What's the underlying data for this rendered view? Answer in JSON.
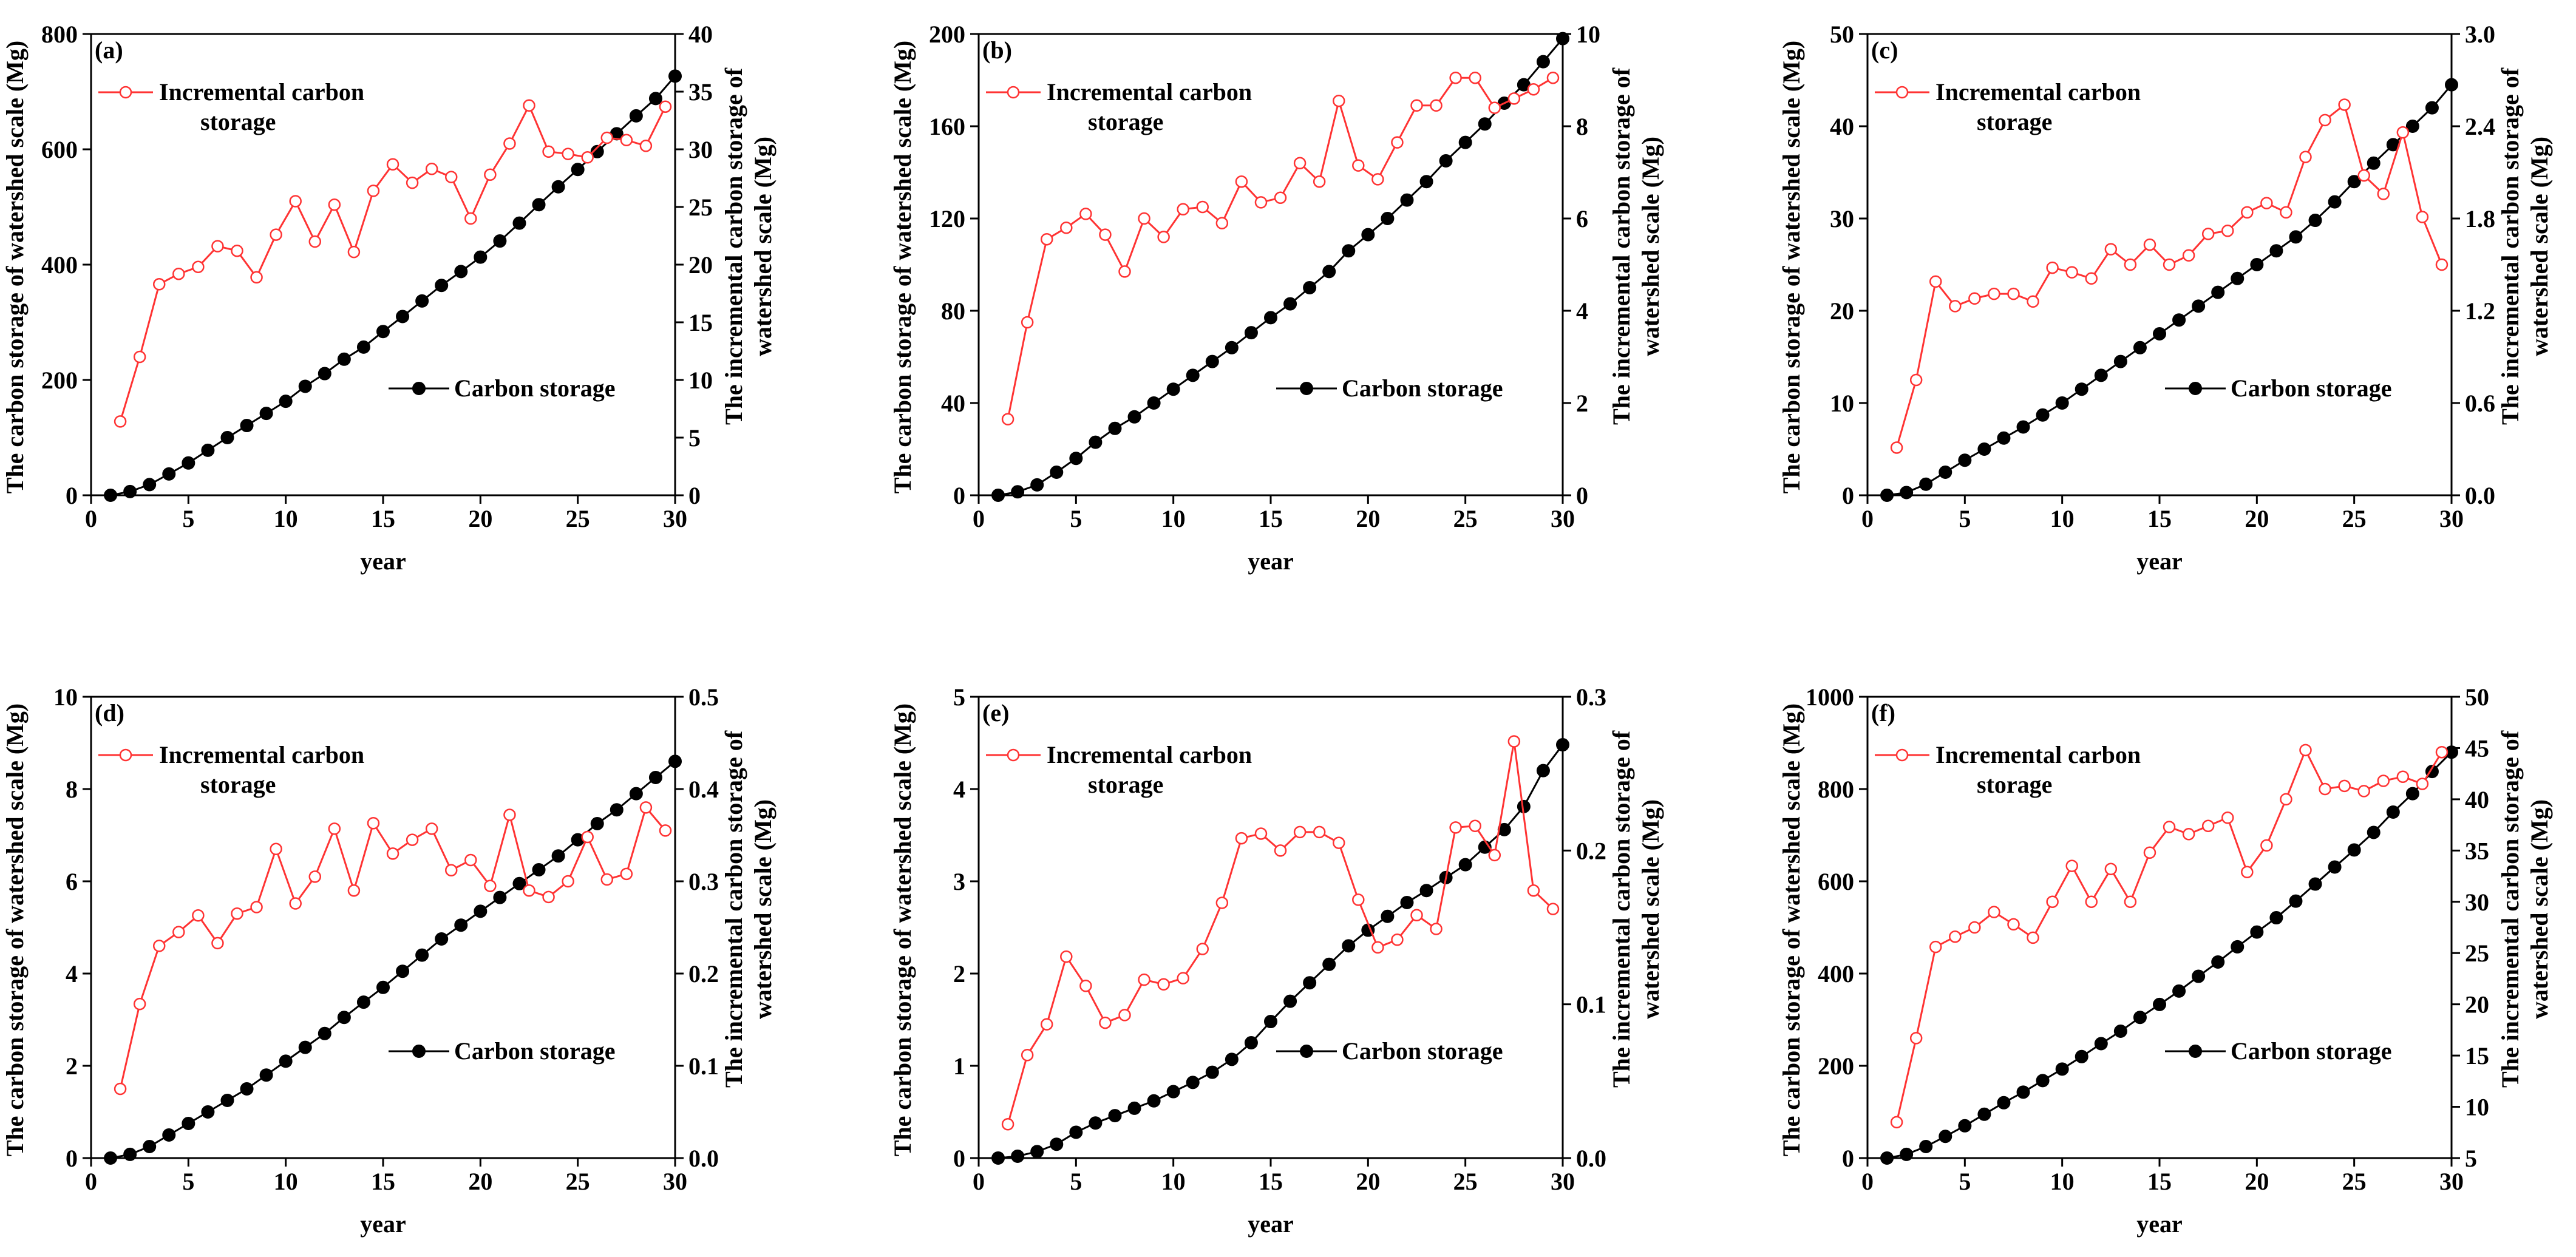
{
  "chart_data": [
    {
      "type": "line",
      "panel_label": "(a)",
      "xlabel": "year",
      "ylabel": "The carbon storage of watershed scale (Mg)",
      "ylabel2": [
        "The incremental carbon storage of",
        "watershed scale (Mg)"
      ],
      "xlim": [
        0,
        30
      ],
      "ylim": [
        0,
        800
      ],
      "ylim2": [
        0,
        40
      ],
      "xticks": [
        0,
        5,
        10,
        15,
        20,
        25,
        30
      ],
      "yticks": [
        0,
        200,
        400,
        600,
        800
      ],
      "yticks2": [
        0,
        5,
        10,
        15,
        20,
        25,
        30,
        35,
        40
      ],
      "legend_incremental": [
        "Incremental carbon",
        "storage"
      ],
      "legend_carbon": "Carbon storage",
      "series": [
        {
          "name": "Carbon storage",
          "axis": "left",
          "color": "#000000",
          "x": [
            1,
            2,
            3,
            4,
            5,
            6,
            7,
            8,
            9,
            10,
            11,
            12,
            13,
            14,
            15,
            16,
            17,
            18,
            19,
            20,
            21,
            22,
            23,
            24,
            25,
            26,
            27,
            28,
            29,
            30
          ],
          "values": [
            0,
            6.5,
            18.5,
            37,
            56,
            78,
            100,
            121,
            142,
            163,
            189,
            211,
            236,
            257,
            284,
            310,
            337,
            364,
            388,
            413,
            441,
            472,
            504,
            535,
            565,
            596,
            627,
            658,
            688,
            727
          ]
        },
        {
          "name": "Incremental carbon storage",
          "axis": "right",
          "color": "#ff3333",
          "x": [
            1.5,
            2.5,
            3.5,
            4.5,
            5.5,
            6.5,
            7.5,
            8.5,
            9.5,
            10.5,
            11.5,
            12.5,
            13.5,
            14.5,
            15.5,
            16.5,
            17.5,
            18.5,
            19.5,
            20.5,
            21.5,
            22.5,
            23.5,
            24.5,
            25.5,
            26.5,
            27.5,
            28.5,
            29.5
          ],
          "values": [
            6.4,
            12,
            18.3,
            19.2,
            19.8,
            21.6,
            21.2,
            18.9,
            22.6,
            25.5,
            22,
            25.2,
            21.1,
            26.4,
            28.7,
            27.1,
            28.3,
            27.6,
            24,
            27.8,
            30.5,
            33.8,
            29.8,
            29.6,
            29.3,
            31,
            30.8,
            30.3,
            33.7
          ]
        }
      ]
    },
    {
      "type": "line",
      "panel_label": "(b)",
      "xlabel": "year",
      "ylabel": "The carbon storage of watershed scale (Mg)",
      "ylabel2": [
        "The incremental carbon storage of",
        "watershed scale (Mg)"
      ],
      "xlim": [
        0,
        30
      ],
      "ylim": [
        0,
        200
      ],
      "ylim2": [
        0,
        10
      ],
      "xticks": [
        0,
        5,
        10,
        15,
        20,
        25,
        30
      ],
      "yticks": [
        0,
        40,
        80,
        120,
        160,
        200
      ],
      "yticks2": [
        0,
        2,
        4,
        6,
        8,
        10
      ],
      "legend_incremental": [
        "Incremental carbon",
        "storage"
      ],
      "legend_carbon": "Carbon storage",
      "series": [
        {
          "name": "Carbon storage",
          "axis": "left",
          "color": "#000000",
          "x": [
            1,
            2,
            3,
            4,
            5,
            6,
            7,
            8,
            9,
            10,
            11,
            12,
            13,
            14,
            15,
            16,
            17,
            18,
            19,
            20,
            21,
            22,
            23,
            24,
            25,
            26,
            27,
            28,
            29,
            30
          ],
          "values": [
            0,
            1.5,
            4.5,
            10,
            16,
            23,
            29,
            34,
            40,
            46,
            52,
            58,
            64,
            70.5,
            77,
            83,
            90,
            97,
            106,
            113,
            120,
            128,
            136,
            145,
            153,
            161,
            170,
            178,
            188,
            198
          ]
        },
        {
          "name": "Incremental carbon storage",
          "axis": "right",
          "color": "#ff3333",
          "x": [
            1.5,
            2.5,
            3.5,
            4.5,
            5.5,
            6.5,
            7.5,
            8.5,
            9.5,
            10.5,
            11.5,
            12.5,
            13.5,
            14.5,
            15.5,
            16.5,
            17.5,
            18.5,
            19.5,
            20.5,
            21.5,
            22.5,
            23.5,
            24.5,
            25.5,
            26.5,
            27.5,
            28.5,
            29.5
          ],
          "values": [
            1.65,
            3.75,
            5.55,
            5.8,
            6.1,
            5.65,
            4.85,
            6.0,
            5.6,
            6.2,
            6.25,
            5.9,
            6.8,
            6.35,
            6.45,
            7.2,
            6.8,
            8.55,
            7.15,
            6.85,
            7.65,
            8.45,
            8.45,
            9.05,
            9.05,
            8.4,
            8.6,
            8.8,
            9.05
          ]
        }
      ]
    },
    {
      "type": "line",
      "panel_label": "(c)",
      "xlabel": "year",
      "ylabel": "The carbon storage of watershed scale (Mg)",
      "ylabel2": [
        "The incremental carbon storage of",
        "watershed scale (Mg)"
      ],
      "xlim": [
        0,
        30
      ],
      "ylim": [
        0,
        50
      ],
      "ylim2": [
        0,
        3.0
      ],
      "xticks": [
        0,
        5,
        10,
        15,
        20,
        25,
        30
      ],
      "yticks": [
        0,
        10,
        20,
        30,
        40,
        50
      ],
      "yticks2": [
        "0.0",
        "0.6",
        "1.2",
        "1.8",
        "2.4",
        "3.0"
      ],
      "legend_incremental": [
        "Incremental carbon",
        "storage"
      ],
      "legend_carbon": "Carbon storage",
      "series": [
        {
          "name": "Carbon storage",
          "axis": "left",
          "color": "#000000",
          "x": [
            1,
            2,
            3,
            4,
            5,
            6,
            7,
            8,
            9,
            10,
            11,
            12,
            13,
            14,
            15,
            16,
            17,
            18,
            19,
            20,
            21,
            22,
            23,
            24,
            25,
            26,
            27,
            28,
            29,
            30
          ],
          "values": [
            0,
            0.3,
            1.2,
            2.5,
            3.8,
            5,
            6.2,
            7.4,
            8.7,
            10,
            11.5,
            13,
            14.5,
            16,
            17.5,
            19,
            20.5,
            22,
            23.5,
            25,
            26.5,
            28,
            29.8,
            31.8,
            34,
            36,
            38,
            40,
            42,
            44.5
          ]
        },
        {
          "name": "Incremental carbon storage",
          "axis": "right",
          "color": "#ff3333",
          "x": [
            1.5,
            2.5,
            3.5,
            4.5,
            5.5,
            6.5,
            7.5,
            8.5,
            9.5,
            10.5,
            11.5,
            12.5,
            13.5,
            14.5,
            15.5,
            16.5,
            17.5,
            18.5,
            19.5,
            20.5,
            21.5,
            22.5,
            23.5,
            24.5,
            25.5,
            26.5,
            27.5,
            28.5,
            29.5
          ],
          "values": [
            0.31,
            0.75,
            1.39,
            1.23,
            1.28,
            1.31,
            1.31,
            1.26,
            1.48,
            1.45,
            1.41,
            1.6,
            1.5,
            1.63,
            1.5,
            1.56,
            1.7,
            1.72,
            1.84,
            1.9,
            1.84,
            2.2,
            2.44,
            2.54,
            2.08,
            1.96,
            2.36,
            1.81,
            1.5
          ]
        }
      ]
    },
    {
      "type": "line",
      "panel_label": "(d)",
      "xlabel": "year",
      "ylabel": "The carbon storage of watershed scale (Mg)",
      "ylabel2": [
        "The incremental carbon storage of",
        "watershed scale (Mg)"
      ],
      "xlim": [
        0,
        30
      ],
      "ylim": [
        0,
        10
      ],
      "ylim2": [
        0,
        0.5
      ],
      "xticks": [
        0,
        5,
        10,
        15,
        20,
        25,
        30
      ],
      "yticks": [
        0,
        2,
        4,
        6,
        8,
        10
      ],
      "yticks2": [
        "0.0",
        "0.1",
        "0.2",
        "0.3",
        "0.4",
        "0.5"
      ],
      "legend_incremental": [
        "Incremental carbon",
        "storage"
      ],
      "legend_carbon": "Carbon storage",
      "series": [
        {
          "name": "Carbon storage",
          "axis": "left",
          "color": "#000000",
          "x": [
            1,
            2,
            3,
            4,
            5,
            6,
            7,
            8,
            9,
            10,
            11,
            12,
            13,
            14,
            15,
            16,
            17,
            18,
            19,
            20,
            21,
            22,
            23,
            24,
            25,
            26,
            27,
            28,
            29,
            30
          ],
          "values": [
            0,
            0.08,
            0.25,
            0.5,
            0.75,
            1.0,
            1.25,
            1.5,
            1.8,
            2.1,
            2.4,
            2.7,
            3.05,
            3.38,
            3.7,
            4.05,
            4.4,
            4.75,
            5.05,
            5.35,
            5.65,
            5.95,
            6.25,
            6.55,
            6.9,
            7.25,
            7.55,
            7.9,
            8.25,
            8.6
          ]
        },
        {
          "name": "Incremental carbon storage",
          "axis": "right",
          "color": "#ff3333",
          "x": [
            1.5,
            2.5,
            3.5,
            4.5,
            5.5,
            6.5,
            7.5,
            8.5,
            9.5,
            10.5,
            11.5,
            12.5,
            13.5,
            14.5,
            15.5,
            16.5,
            17.5,
            18.5,
            19.5,
            20.5,
            21.5,
            22.5,
            23.5,
            24.5,
            25.5,
            26.5,
            27.5,
            28.5,
            29.5
          ],
          "values": [
            0.075,
            0.167,
            0.23,
            0.245,
            0.263,
            0.233,
            0.265,
            0.272,
            0.335,
            0.276,
            0.305,
            0.357,
            0.29,
            0.363,
            0.33,
            0.345,
            0.357,
            0.312,
            0.323,
            0.295,
            0.372,
            0.29,
            0.283,
            0.3,
            0.348,
            0.302,
            0.308,
            0.38,
            0.355
          ]
        }
      ]
    },
    {
      "type": "line",
      "panel_label": "(e)",
      "xlabel": "year",
      "ylabel": "The carbon storage of watershed scale (Mg)",
      "ylabel2": [
        "The incremental carbon storage of",
        "watershed scale (Mg)"
      ],
      "xlim": [
        0,
        30
      ],
      "ylim": [
        0,
        5
      ],
      "ylim2": [
        0,
        0.3
      ],
      "xticks": [
        0,
        5,
        10,
        15,
        20,
        25,
        30
      ],
      "yticks": [
        0,
        1,
        2,
        3,
        4,
        5
      ],
      "yticks2": [
        "0.0",
        "0.1",
        "0.2",
        "0.3"
      ],
      "legend_incremental": [
        "Incremental carbon",
        "storage"
      ],
      "legend_carbon": "Carbon storage",
      "series": [
        {
          "name": "Carbon storage",
          "axis": "left",
          "color": "#000000",
          "x": [
            1,
            2,
            3,
            4,
            5,
            6,
            7,
            8,
            9,
            10,
            11,
            12,
            13,
            14,
            15,
            16,
            17,
            18,
            19,
            20,
            21,
            22,
            23,
            24,
            25,
            26,
            27,
            28,
            29,
            30
          ],
          "values": [
            0,
            0.02,
            0.07,
            0.15,
            0.28,
            0.38,
            0.46,
            0.54,
            0.62,
            0.72,
            0.82,
            0.93,
            1.07,
            1.25,
            1.48,
            1.7,
            1.9,
            2.1,
            2.3,
            2.47,
            2.62,
            2.77,
            2.9,
            3.04,
            3.18,
            3.37,
            3.56,
            3.81,
            4.2,
            4.48
          ]
        },
        {
          "name": "Incremental carbon storage",
          "axis": "right",
          "color": "#ff3333",
          "x": [
            1.5,
            2.5,
            3.5,
            4.5,
            5.5,
            6.5,
            7.5,
            8.5,
            9.5,
            10.5,
            11.5,
            12.5,
            13.5,
            14.5,
            15.5,
            16.5,
            17.5,
            18.5,
            19.5,
            20.5,
            21.5,
            22.5,
            23.5,
            24.5,
            25.5,
            26.5,
            27.5,
            28.5,
            29.5
          ],
          "values": [
            0.022,
            0.067,
            0.087,
            0.131,
            0.112,
            0.088,
            0.093,
            0.116,
            0.113,
            0.117,
            0.136,
            0.166,
            0.208,
            0.211,
            0.2,
            0.212,
            0.212,
            0.205,
            0.168,
            0.137,
            0.142,
            0.158,
            0.149,
            0.215,
            0.216,
            0.197,
            0.271,
            0.174,
            0.162
          ]
        }
      ]
    },
    {
      "type": "line",
      "panel_label": "(f)",
      "xlabel": "year",
      "ylabel": "The carbon storage of watershed scale (Mg)",
      "ylabel2": [
        "The incremental carbon storage of",
        "watershed scale (Mg)"
      ],
      "xlim": [
        0,
        30
      ],
      "ylim": [
        0,
        1000
      ],
      "ylim2": [
        5,
        50
      ],
      "xticks": [
        0,
        5,
        10,
        15,
        20,
        25,
        30
      ],
      "yticks": [
        0,
        200,
        400,
        600,
        800,
        1000
      ],
      "yticks2": [
        5,
        10,
        15,
        20,
        25,
        30,
        35,
        40,
        45,
        50
      ],
      "legend_incremental": [
        "Incremental carbon",
        "storage"
      ],
      "legend_carbon": "Carbon storage",
      "series": [
        {
          "name": "Carbon storage",
          "axis": "left",
          "color": "#000000",
          "x": [
            1,
            2,
            3,
            4,
            5,
            6,
            7,
            8,
            9,
            10,
            11,
            12,
            13,
            14,
            15,
            16,
            17,
            18,
            19,
            20,
            21,
            22,
            23,
            24,
            25,
            26,
            27,
            28,
            29,
            30
          ],
          "values": [
            0,
            8,
            25,
            47,
            70,
            95,
            120,
            143,
            168,
            193,
            220,
            248,
            275,
            305,
            333,
            362,
            394,
            425,
            458,
            490,
            521,
            557,
            594,
            631,
            668,
            706,
            750,
            790,
            838,
            880
          ]
        },
        {
          "name": "Incremental carbon storage",
          "axis": "right",
          "color": "#ff3333",
          "x": [
            1.5,
            2.5,
            3.5,
            4.5,
            5.5,
            6.5,
            7.5,
            8.5,
            9.5,
            10.5,
            11.5,
            12.5,
            13.5,
            14.5,
            15.5,
            16.5,
            17.5,
            18.5,
            19.5,
            20.5,
            21.5,
            22.5,
            23.5,
            24.5,
            25.5,
            26.5,
            27.5,
            28.5,
            29.5
          ],
          "values": [
            8.5,
            16.7,
            25.6,
            26.6,
            27.5,
            29,
            27.8,
            26.5,
            30,
            33.5,
            30,
            33.2,
            30,
            34.8,
            37.3,
            36.6,
            37.4,
            38.2,
            32.9,
            35.5,
            40,
            44.8,
            41,
            41.3,
            40.8,
            41.8,
            42.2,
            41.5,
            44.6
          ]
        }
      ]
    }
  ]
}
